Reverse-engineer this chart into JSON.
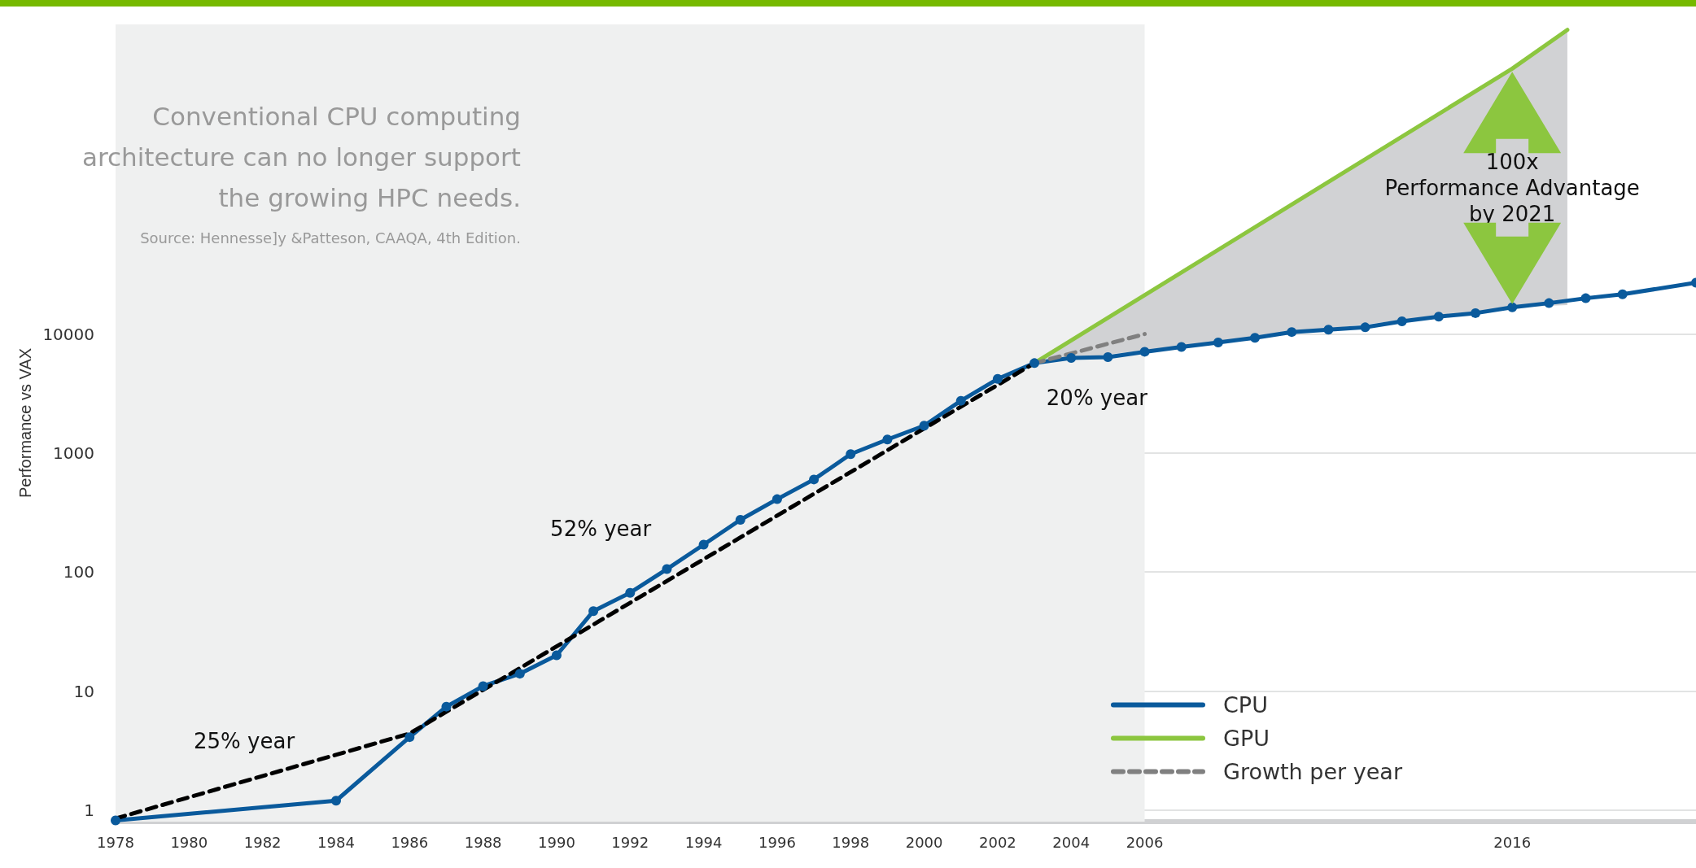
{
  "chart_data": {
    "type": "line",
    "title": "Conventional CPU computing architecture can no longer support the growing HPC needs.",
    "ylabel": "Performance vs VAX",
    "annotations": [
      "Source: Hennesse]y &Patteson, CAAQA, 4th Edition.",
      "25% year",
      "52% year",
      "20% year",
      "100x\nPerformance Advantage\nby 2021"
    ],
    "xlim": [
      1978,
      2021
    ],
    "xticks": [
      1978,
      1980,
      1982,
      1984,
      1986,
      1988,
      1990,
      1992,
      1994,
      1996,
      1998,
      2000,
      2002,
      2004,
      2006,
      2016
    ],
    "ylim": [
      0.8,
      4000000
    ],
    "yticks": [
      1,
      10,
      100,
      1000,
      10000
    ],
    "log": "y",
    "grid": "y",
    "legend": "bottom right",
    "bands": [
      {
        "axis": "x",
        "from": 1978,
        "to": 2006,
        "color": "#eff0f0"
      }
    ],
    "series": [
      {
        "name": "CPU",
        "color": "#0a5a9c",
        "marker": "circle",
        "x": [
          1978,
          1984,
          1986,
          1987,
          1988,
          1989,
          1990,
          1991,
          1992,
          1993,
          1994,
          1995,
          1996,
          1997,
          1998,
          1999,
          2000,
          2001,
          2002,
          2003,
          2004,
          2005,
          2006,
          2007,
          2008,
          2009,
          2010,
          2011,
          2012,
          2013,
          2014,
          2015,
          2016,
          2017,
          2018,
          2019,
          2021
        ],
        "values": [
          0.82,
          1.2,
          4.1,
          7.4,
          11,
          14,
          20,
          47,
          67,
          106,
          170,
          275,
          410,
          600,
          980,
          1300,
          1700,
          2750,
          4200,
          5700,
          6300,
          6400,
          7100,
          7800,
          8500,
          9300,
          10400,
          10900,
          11400,
          12800,
          14000,
          15000,
          16800,
          18200,
          20000,
          21600,
          27000
        ]
      },
      {
        "name": "GPU",
        "color": "#8cc63f",
        "marker": "none",
        "x": [
          2003,
          2016,
          2017.5
        ],
        "values": [
          5700,
          1700000,
          3600000
        ],
        "lower": [
          5700,
          16800,
          17500
        ],
        "upper": [
          5700,
          1700000,
          3600000
        ]
      },
      {
        "color": "#000000",
        "marker": "none",
        "line_style": "dashed",
        "x": [
          1978,
          1986,
          2003
        ],
        "values": [
          0.85,
          4.4,
          5700
        ]
      },
      {
        "name": "Growth per year",
        "color": "#808080",
        "marker": "none",
        "line_style": "dashed",
        "x": [
          2003,
          2006
        ],
        "values": [
          5700,
          10000
        ]
      }
    ]
  }
}
